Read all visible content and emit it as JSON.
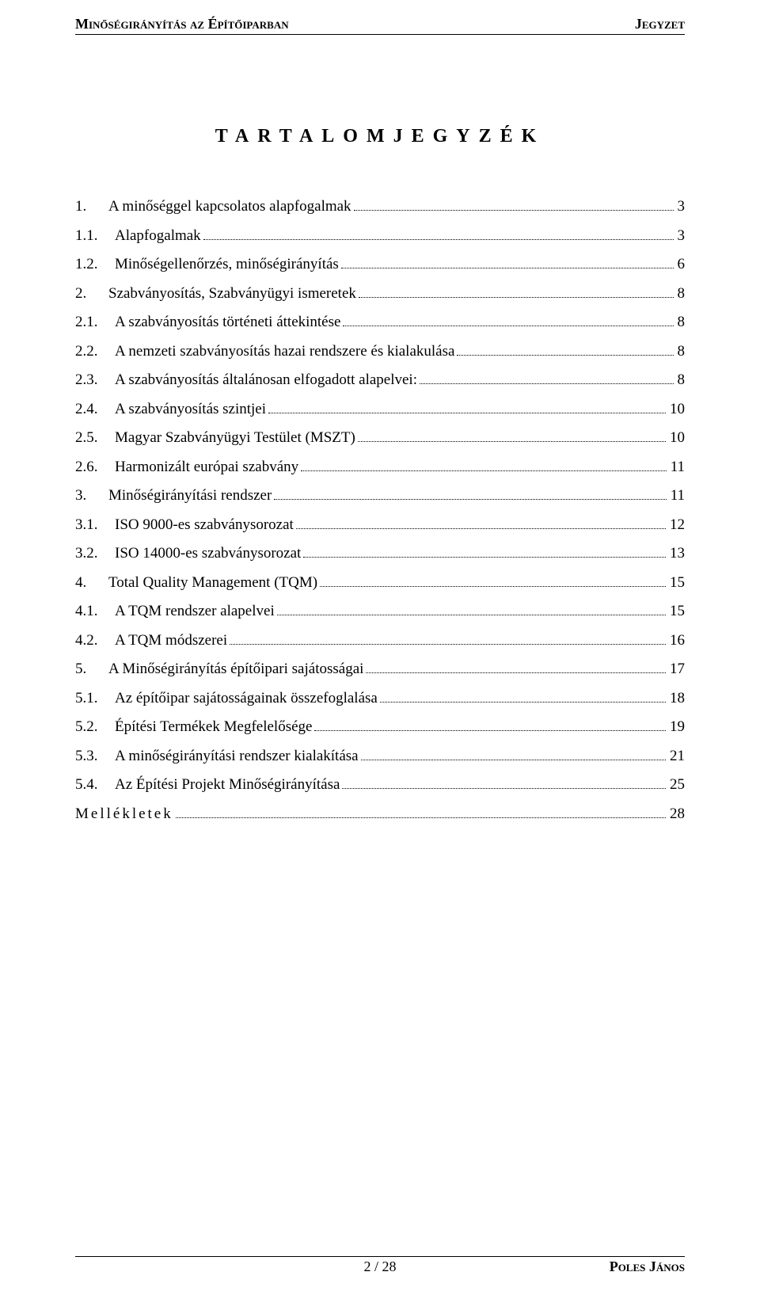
{
  "header": {
    "left": "Minőségirányítás az Építőiparban",
    "right": "Jegyzet"
  },
  "title": "TARTALOMJEGYZÉK",
  "toc": [
    {
      "num": "1.",
      "text": "A minőséggel kapcsolatos alapfogalmak",
      "page": "3",
      "level": 0
    },
    {
      "num": "1.1.",
      "text": "Alapfogalmak",
      "page": "3",
      "level": 0
    },
    {
      "num": "1.2.",
      "text": "Minőségellenőrzés, minőségirányítás",
      "page": "6",
      "level": 0
    },
    {
      "num": "2.",
      "text": "Szabványosítás, Szabványügyi ismeretek",
      "page": "8",
      "level": 0
    },
    {
      "num": "2.1.",
      "text": "A szabványosítás történeti áttekintése",
      "page": "8",
      "level": 0
    },
    {
      "num": "2.2.",
      "text": "A nemzeti szabványosítás hazai rendszere és kialakulása",
      "page": "8",
      "level": 0
    },
    {
      "num": "2.3.",
      "text": "A szabványosítás általánosan elfogadott alapelvei:",
      "page": "8",
      "level": 0
    },
    {
      "num": "2.4.",
      "text": "A szabványosítás szintjei",
      "page": "10",
      "level": 0
    },
    {
      "num": "2.5.",
      "text": "Magyar Szabványügyi Testület (MSZT)",
      "page": "10",
      "level": 0
    },
    {
      "num": "2.6.",
      "text": "Harmonizált európai szabvány",
      "page": "11",
      "level": 0
    },
    {
      "num": "3.",
      "text": "Minőségirányítási rendszer",
      "page": "11",
      "level": 0
    },
    {
      "num": "3.1.",
      "text": "ISO 9000-es szabványsorozat",
      "page": "12",
      "level": 0
    },
    {
      "num": "3.2.",
      "text": "ISO 14000-es szabványsorozat",
      "page": "13",
      "level": 0
    },
    {
      "num": "4.",
      "text": "Total Quality Management (TQM)",
      "page": "15",
      "level": 0
    },
    {
      "num": "4.1.",
      "text": "A TQM rendszer alapelvei",
      "page": "15",
      "level": 0
    },
    {
      "num": "4.2.",
      "text": "A TQM módszerei",
      "page": "16",
      "level": 0
    },
    {
      "num": "5.",
      "text": "A Minőségirányítás építőipari sajátosságai",
      "page": "17",
      "level": 0
    },
    {
      "num": "5.1.",
      "text": "Az építőipar sajátosságainak összefoglalása",
      "page": "18",
      "level": 0
    },
    {
      "num": "5.2.",
      "text": "Építési Termékek Megfelelősége",
      "page": "19",
      "level": 0
    },
    {
      "num": "5.3.",
      "text": "A minőségirányítási rendszer kialakítása",
      "page": "21",
      "level": 0
    },
    {
      "num": "5.4.",
      "text": "Az Építési Projekt Minőségirányítása",
      "page": "25",
      "level": 0
    },
    {
      "num": "",
      "text": "Mellékletek",
      "page": "28",
      "level": 0,
      "spaced": true
    }
  ],
  "footer": {
    "pager": "2 / 28",
    "author": "Poles János"
  },
  "colors": {
    "text": "#000000",
    "background": "#ffffff",
    "rule": "#000000"
  },
  "typography": {
    "body_font": "Times New Roman",
    "header_fontsize_pt": 13,
    "title_fontsize_pt": 18,
    "toc_fontsize_pt": 14,
    "footer_fontsize_pt": 13
  }
}
